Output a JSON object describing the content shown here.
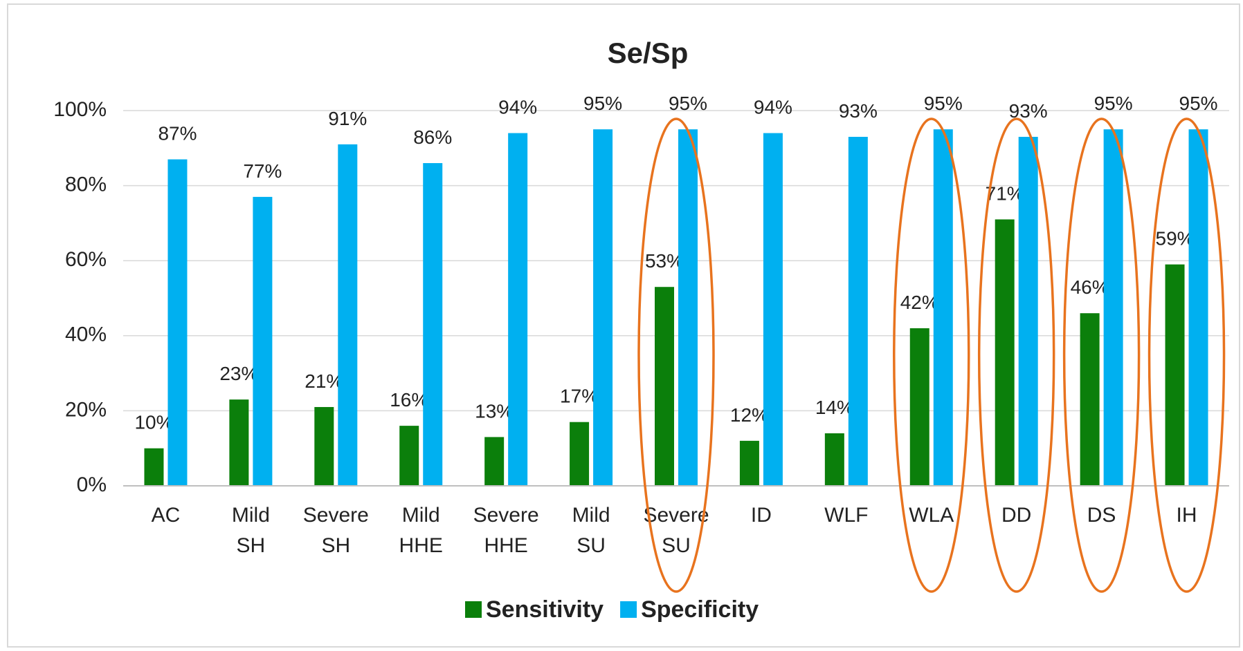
{
  "chart_data": {
    "type": "bar",
    "title": "Se/Sp",
    "categories": [
      "AC",
      "Mild SH",
      "Severe SH",
      "Mild HHE",
      "Severe HHE",
      "Mild SU",
      "Severe SU",
      "ID",
      "WLF",
      "WLA",
      "DD",
      "DS",
      "IH"
    ],
    "series": [
      {
        "name": "Sensitivity",
        "color": "#0b7f0b",
        "values": [
          10,
          23,
          21,
          16,
          13,
          17,
          53,
          12,
          14,
          42,
          71,
          46,
          59
        ],
        "value_labels": [
          "10%",
          "23%",
          "21%",
          "16%",
          "13%",
          "17%",
          "53%",
          "12%",
          "14%",
          "42%",
          "71%",
          "46%",
          "59%"
        ]
      },
      {
        "name": "Specificity",
        "color": "#00b0f0",
        "values": [
          87,
          77,
          91,
          86,
          94,
          95,
          95,
          94,
          93,
          95,
          93,
          95,
          95
        ],
        "value_labels": [
          "87%",
          "77%",
          "91%",
          "86%",
          "94%",
          "95%",
          "95%",
          "94%",
          "93%",
          "95%",
          "93%",
          "95%",
          "95%"
        ]
      }
    ],
    "ylim": [
      0,
      100
    ],
    "yticks": [
      {
        "value": 0,
        "label": "0%"
      },
      {
        "value": 20,
        "label": "20%"
      },
      {
        "value": 40,
        "label": "40%"
      },
      {
        "value": 60,
        "label": "60%"
      },
      {
        "value": 80,
        "label": "80%"
      },
      {
        "value": 100,
        "label": "100%"
      }
    ],
    "grid": true,
    "legend": "bottom"
  }
}
